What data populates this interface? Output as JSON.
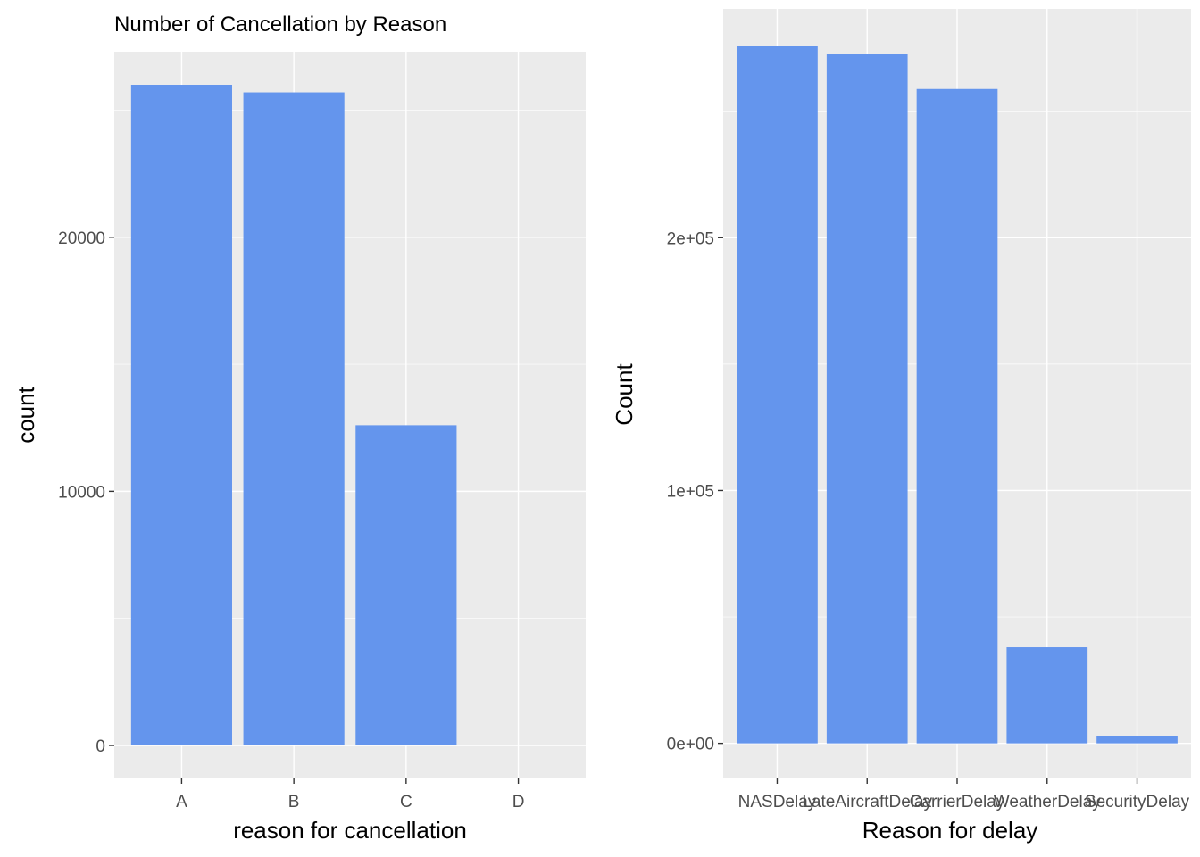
{
  "chart_data": [
    {
      "type": "bar",
      "title": "Number of Cancellation by Reason",
      "xlabel": "reason for cancellation",
      "ylabel": "count",
      "categories": [
        "A",
        "B",
        "C",
        "D"
      ],
      "values": [
        26000,
        25700,
        12600,
        30
      ],
      "ylim": [
        -1300,
        27300
      ],
      "yticks": [
        0,
        10000,
        20000
      ],
      "ytick_labels": [
        "0",
        "10000",
        "20000"
      ],
      "bar_color": "#6495ED",
      "grid": true
    },
    {
      "type": "bar",
      "title": "",
      "xlabel": "Reason for delay",
      "ylabel": "Count",
      "categories": [
        "NASDelay",
        "LateAircraftDelay",
        "CarrierDelay",
        "WeatherDelay",
        "SecurityDelay"
      ],
      "values": [
        276000,
        272500,
        258800,
        38000,
        2800
      ],
      "ylim": [
        -13900,
        290500
      ],
      "yticks": [
        0,
        100000,
        200000
      ],
      "ytick_labels": [
        "0e+00",
        "1e+05",
        "2e+05"
      ],
      "bar_color": "#6495ED",
      "grid": true
    }
  ]
}
